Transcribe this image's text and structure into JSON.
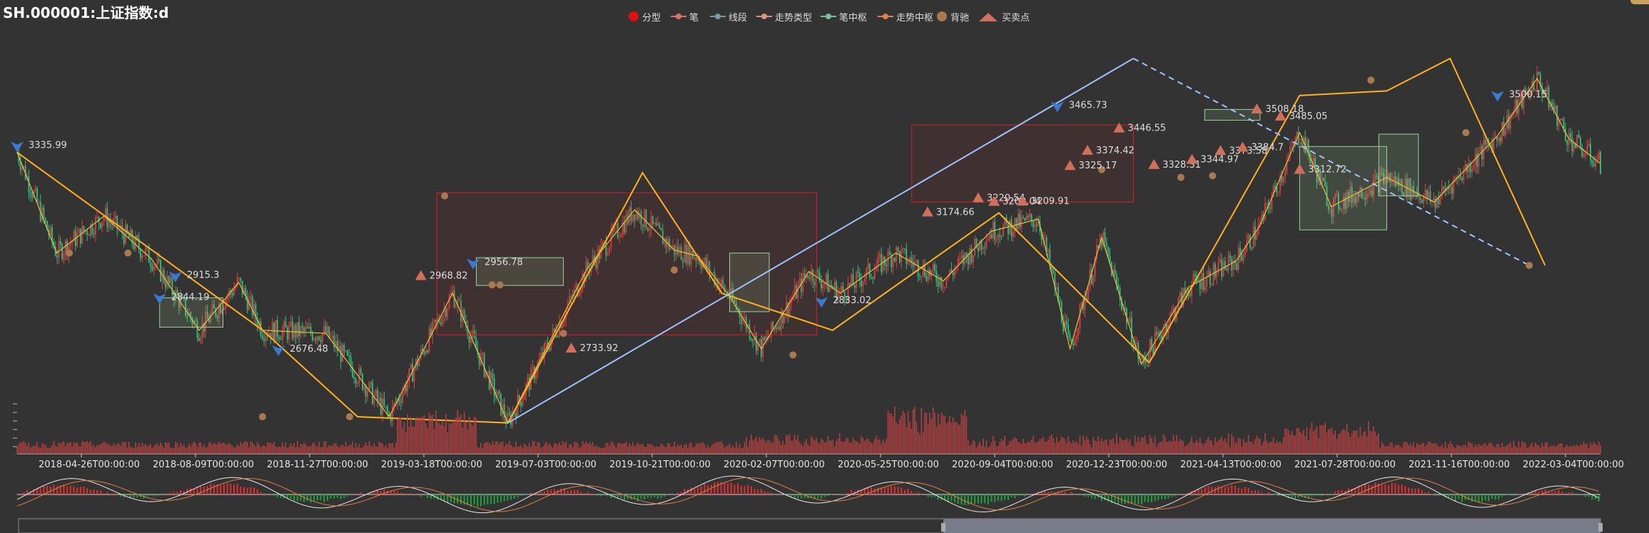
{
  "title": "SH.000001:上证指数:d",
  "legend": [
    {
      "label": "分型",
      "color": "#e01010",
      "icon": "circle"
    },
    {
      "label": "笔",
      "color": "#e07070",
      "icon": "line-dot"
    },
    {
      "label": "线段",
      "color": "#7a9aa0",
      "icon": "line-dot"
    },
    {
      "label": "走势类型",
      "color": "#e0907a",
      "icon": "line-dot"
    },
    {
      "label": "笔中枢",
      "color": "#7ac0a0",
      "icon": "line-dot"
    },
    {
      "label": "走势中枢",
      "color": "#e08050",
      "icon": "line-dot"
    },
    {
      "label": "背驰",
      "color": "#a87850",
      "icon": "circle"
    },
    {
      "label": "买卖点",
      "color": "#d07060",
      "icon": "triangle"
    }
  ],
  "colors": {
    "background": "#333333",
    "up_candle": "#e04040",
    "down_candle": "#30c080",
    "bi": "#e8c040",
    "segment": "#ffb020",
    "trend": "#a0c4ff",
    "bi_zhongshu": "#9fcf9f",
    "trend_zhongshu": "#c0202a",
    "divergence": "#a87850",
    "buy_point": "#d0705a",
    "sell_point": "#3a7ad0",
    "volume": "#b04040",
    "macd_up": "#e03030",
    "macd_down": "#20a040",
    "dif": "#e8e8e8",
    "dea": "#e08040"
  },
  "chart_data": {
    "type": "candlestick",
    "x_tick_labels": [
      "2018-04-26T00:00:00",
      "2018-08-09T00:00:00",
      "2018-11-27T00:00:00",
      "2019-03-18T00:00:00",
      "2019-07-03T00:00:00",
      "2019-10-21T00:00:00",
      "2020-02-07T00:00:00",
      "2020-05-25T00:00:00",
      "2020-09-04T00:00:00",
      "2020-12-23T00:00:00",
      "2021-04-13T00:00:00",
      "2021-07-28T00:00:00",
      "2021-11-16T00:00:00",
      "2022-03-04T00:00:00"
    ],
    "y_range": [
      2420,
      3760
    ],
    "bi": [
      [
        0.0,
        3336
      ],
      [
        0.025,
        3010
      ],
      [
        0.055,
        3130
      ],
      [
        0.085,
        2990
      ],
      [
        0.115,
        2760
      ],
      [
        0.14,
        2915
      ],
      [
        0.155,
        2760
      ],
      [
        0.195,
        2750
      ],
      [
        0.235,
        2480
      ],
      [
        0.275,
        2880
      ],
      [
        0.31,
        2460
      ],
      [
        0.36,
        2960
      ],
      [
        0.39,
        3150
      ],
      [
        0.415,
        3020
      ],
      [
        0.43,
        3000
      ],
      [
        0.45,
        2870
      ],
      [
        0.47,
        2700
      ],
      [
        0.5,
        2950
      ],
      [
        0.52,
        2880
      ],
      [
        0.555,
        3010
      ],
      [
        0.585,
        2920
      ],
      [
        0.615,
        3080
      ],
      [
        0.645,
        3120
      ],
      [
        0.665,
        2700
      ],
      [
        0.685,
        3060
      ],
      [
        0.71,
        2650
      ],
      [
        0.74,
        2900
      ],
      [
        0.77,
        2985
      ],
      [
        0.785,
        3100
      ],
      [
        0.81,
        3400
      ],
      [
        0.83,
        3160
      ],
      [
        0.865,
        3255
      ],
      [
        0.895,
        3175
      ],
      [
        0.935,
        3390
      ],
      [
        0.96,
        3575
      ],
      [
        0.98,
        3380
      ],
      [
        1.0,
        3300
      ]
    ],
    "segments_part1": [
      [
        0.0,
        3336
      ],
      [
        0.155,
        2760
      ],
      [
        0.215,
        2480
      ],
      [
        0.31,
        2460
      ],
      [
        0.395,
        3270
      ],
      [
        0.445,
        2880
      ],
      [
        0.515,
        2760
      ],
      [
        0.62,
        3140
      ],
      [
        0.715,
        2655
      ]
    ],
    "segments_part2": [
      [
        0.715,
        2655
      ],
      [
        0.81,
        3520
      ],
      [
        0.865,
        3535
      ],
      [
        0.905,
        3640
      ],
      [
        0.965,
        2970
      ]
    ],
    "trend_line": [
      [
        0.31,
        2460
      ],
      [
        0.705,
        3640
      ]
    ],
    "trend_dashed": [
      [
        0.705,
        3640
      ],
      [
        0.955,
        2970
      ]
    ],
    "bi_zhongshu": [
      [
        0.09,
        2770,
        2865
      ],
      [
        0.29,
        2905,
        2995
      ],
      [
        0.45,
        2820,
        3010
      ],
      [
        0.86,
        3195,
        3395
      ],
      [
        0.81,
        3085,
        3355
      ],
      [
        0.75,
        3440,
        3475
      ]
    ],
    "trend_zhongshu": [
      [
        0.265,
        2745,
        3205
      ],
      [
        0.565,
        3175,
        3425
      ]
    ],
    "divergences": [
      [
        0.033,
        3010
      ],
      [
        0.07,
        3010
      ],
      [
        0.155,
        2480
      ],
      [
        0.21,
        2480
      ],
      [
        0.27,
        3195
      ],
      [
        0.3,
        2907
      ],
      [
        0.305,
        2907
      ],
      [
        0.345,
        2750
      ],
      [
        0.415,
        2955
      ],
      [
        0.49,
        2680
      ],
      [
        0.685,
        3280
      ],
      [
        0.735,
        3255
      ],
      [
        0.755,
        3260
      ],
      [
        0.855,
        3570
      ],
      [
        0.915,
        3400
      ],
      [
        0.955,
        2970
      ]
    ],
    "buy_points": [
      {
        "label": "2968.82",
        "x": 0.255,
        "y": 2968.82
      },
      {
        "label": "2733.92",
        "x": 0.35,
        "y": 2733.92
      },
      {
        "label": "3174.66",
        "x": 0.575,
        "y": 3174.66
      },
      {
        "label": "3220.54",
        "x": 0.607,
        "y": 3220.54
      },
      {
        "label": "3209.04",
        "x": 0.617,
        "y": 3209.04
      },
      {
        "label": "3209.91",
        "x": 0.635,
        "y": 3209.91
      },
      {
        "label": "3325.17",
        "x": 0.665,
        "y": 3325.17
      },
      {
        "label": "3374.42",
        "x": 0.676,
        "y": 3374.42
      },
      {
        "label": "3446.55",
        "x": 0.696,
        "y": 3446.55
      },
      {
        "label": "3328.31",
        "x": 0.718,
        "y": 3328.31
      },
      {
        "label": "3344.97",
        "x": 0.742,
        "y": 3344.97
      },
      {
        "label": "3373.58",
        "x": 0.76,
        "y": 3373.58
      },
      {
        "label": "3384.7",
        "x": 0.774,
        "y": 3384.7
      },
      {
        "label": "3508.18",
        "x": 0.783,
        "y": 3508.18
      },
      {
        "label": "3485.05",
        "x": 0.798,
        "y": 3485.05
      },
      {
        "label": "3312.72",
        "x": 0.81,
        "y": 3312.72
      }
    ],
    "sell_points": [
      {
        "label": "3335.99",
        "x": 0.0,
        "y": 3335.99
      },
      {
        "label": "2844.19",
        "x": 0.09,
        "y": 2844.19
      },
      {
        "label": "2915.3",
        "x": 0.1,
        "y": 2915.3
      },
      {
        "label": "2676.48",
        "x": 0.165,
        "y": 2676.48
      },
      {
        "label": "2956.78",
        "x": 0.288,
        "y": 2956.78
      },
      {
        "label": "2833.02",
        "x": 0.508,
        "y": 2833.02
      },
      {
        "label": "3465.73",
        "x": 0.657,
        "y": 3465.73
      },
      {
        "label": "3500.15",
        "x": 0.935,
        "y": 3500.15
      }
    ]
  }
}
